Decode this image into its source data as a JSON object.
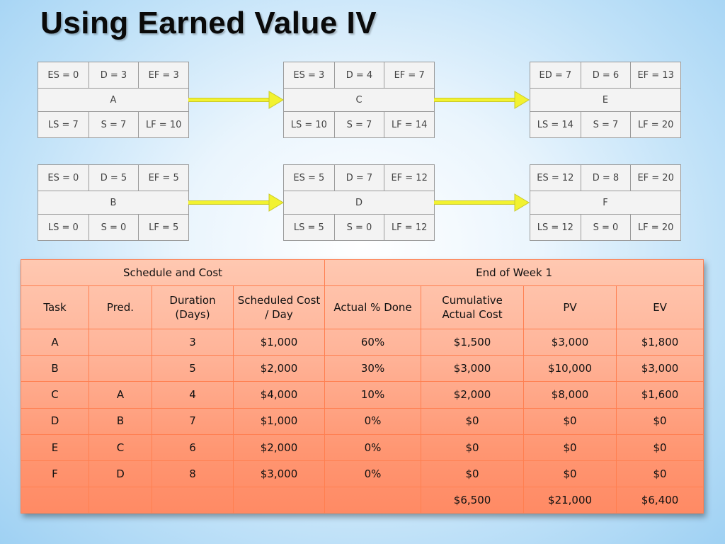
{
  "slide": {
    "title": "Using Earned Value IV"
  },
  "nodes": {
    "A": {
      "top": [
        "ES = 0",
        "D = 3",
        "EF = 3"
      ],
      "name": "A",
      "bottom": [
        "LS = 7",
        "S = 7",
        "LF = 10"
      ]
    },
    "C": {
      "top": [
        "ES = 3",
        "D = 4",
        "EF = 7"
      ],
      "name": "C",
      "bottom": [
        "LS = 10",
        "S = 7",
        "LF = 14"
      ]
    },
    "E": {
      "top": [
        "ED = 7",
        "D = 6",
        "EF = 13"
      ],
      "name": "E",
      "bottom": [
        "LS = 14",
        "S = 7",
        "LF = 20"
      ]
    },
    "B": {
      "top": [
        "ES = 0",
        "D = 5",
        "EF = 5"
      ],
      "name": "B",
      "bottom": [
        "LS = 0",
        "S = 0",
        "LF = 5"
      ]
    },
    "D": {
      "top": [
        "ES = 5",
        "D = 7",
        "EF = 12"
      ],
      "name": "D",
      "bottom": [
        "LS = 5",
        "S = 0",
        "LF = 12"
      ]
    },
    "F": {
      "top": [
        "ES = 12",
        "D = 8",
        "EF = 20"
      ],
      "name": "F",
      "bottom": [
        "LS = 12",
        "S = 0",
        "LF = 20"
      ]
    }
  },
  "table": {
    "group_headers": [
      "Schedule and Cost",
      "End of Week 1"
    ],
    "headers": [
      "Task",
      "Pred.",
      "Duration (Days)",
      "Scheduled Cost / Day",
      "Actual % Done",
      "Cumulative Actual Cost",
      "PV",
      "EV"
    ],
    "rows": [
      [
        "A",
        "",
        "3",
        "$1,000",
        "60%",
        "$1,500",
        "$3,000",
        "$1,800"
      ],
      [
        "B",
        "",
        "5",
        "$2,000",
        "30%",
        "$3,000",
        "$10,000",
        "$3,000"
      ],
      [
        "C",
        "A",
        "4",
        "$4,000",
        "10%",
        "$2,000",
        "$8,000",
        "$1,600"
      ],
      [
        "D",
        "B",
        "7",
        "$1,000",
        "0%",
        "$0",
        "$0",
        "$0"
      ],
      [
        "E",
        "C",
        "6",
        "$2,000",
        "0%",
        "$0",
        "$0",
        "$0"
      ],
      [
        "F",
        "D",
        "8",
        "$3,000",
        "0%",
        "$0",
        "$0",
        "$0"
      ]
    ],
    "totals": [
      "",
      "",
      "",
      "",
      "",
      "$6,500",
      "$21,000",
      "$6,400"
    ]
  },
  "colors": {
    "arrow": "#f2f230",
    "table_border": "#ff7f50",
    "node_border": "#9a9a9a"
  }
}
